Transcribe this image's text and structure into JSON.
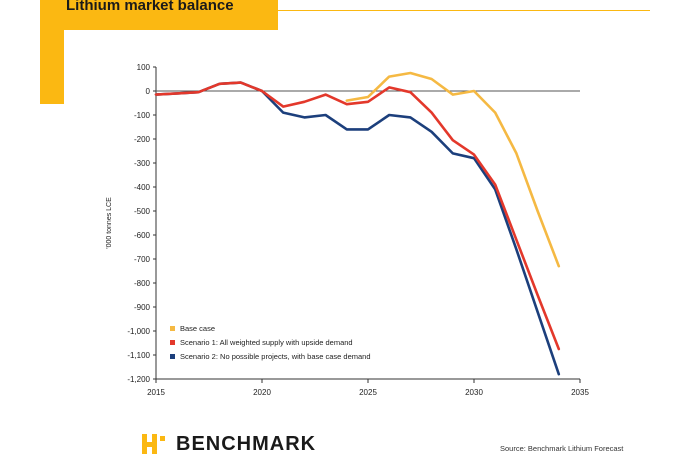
{
  "title": "Lithium market balance",
  "source": "Source: Benchmark Lithium Forecast",
  "logo_text": "BENCHMARK",
  "colors": {
    "accent": "#fbb812",
    "base": "#f5b943",
    "s1": "#e3382b",
    "s2": "#1c3f7c"
  },
  "chart_data": {
    "type": "line",
    "title": "",
    "xlabel": "",
    "ylabel": "'000 tonnes LCE",
    "xlim": [
      2015,
      2035
    ],
    "ylim": [
      -1200,
      100
    ],
    "x_ticks": [
      2015,
      2020,
      2025,
      2030,
      2035
    ],
    "y_ticks": [
      100,
      0,
      -100,
      -200,
      -300,
      -400,
      -500,
      -600,
      -700,
      -800,
      -900,
      -1000,
      -1100,
      -1200
    ],
    "y_tick_labels": [
      "100",
      "0",
      "-100",
      "-200",
      "-300",
      "-400",
      "-500",
      "-600",
      "-700",
      "-800",
      "-900",
      "-1,000",
      "-1,100",
      "-1,200"
    ],
    "legend_position": "bottom-left",
    "series": [
      {
        "name": "Base case",
        "color": "#f5b943",
        "x": [
          2024,
          2025,
          2026,
          2027,
          2028,
          2029,
          2030,
          2031,
          2032,
          2033,
          2034
        ],
        "y": [
          -40,
          -25,
          60,
          75,
          50,
          -15,
          0,
          -90,
          -260,
          -500,
          -730
        ]
      },
      {
        "name": "Scenario 1: All weighted supply with upside demand",
        "color": "#e3382b",
        "x": [
          2015,
          2016,
          2017,
          2018,
          2019,
          2020,
          2021,
          2022,
          2023,
          2024,
          2025,
          2026,
          2027,
          2028,
          2029,
          2030,
          2031,
          2032,
          2033,
          2034
        ],
        "y": [
          -15,
          -10,
          -5,
          30,
          35,
          0,
          -65,
          -45,
          -15,
          -55,
          -45,
          15,
          -5,
          -90,
          -205,
          -265,
          -390,
          -620,
          -850,
          -1075
        ]
      },
      {
        "name": "Scenario 2: No possible projects, with base case demand",
        "color": "#1c3f7c",
        "x": [
          2015,
          2016,
          2017,
          2018,
          2019,
          2020,
          2021,
          2022,
          2023,
          2024,
          2025,
          2026,
          2027,
          2028,
          2029,
          2030,
          2031,
          2032,
          2033,
          2034
        ],
        "y": [
          -15,
          -10,
          -5,
          30,
          35,
          0,
          -90,
          -110,
          -100,
          -160,
          -160,
          -100,
          -110,
          -170,
          -260,
          -280,
          -410,
          -660,
          -920,
          -1180
        ]
      }
    ]
  }
}
